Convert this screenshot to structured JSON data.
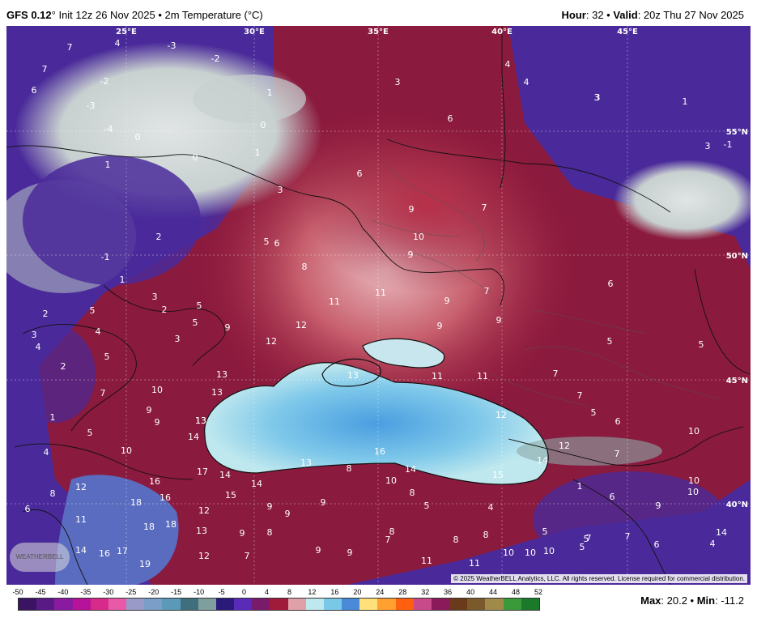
{
  "header": {
    "model": "GFS 0.12",
    "degree": "°",
    "init": " Init 12z 26 Nov 2025 • 2m Temperature (°C)",
    "hour_label": "Hour",
    "hour_value": ": 32 • ",
    "valid_label": "Valid",
    "valid_value": ": 20z Thu 27 Nov 2025"
  },
  "map": {
    "longitudes": [
      "25°E",
      "30°E",
      "35°E",
      "40°E",
      "45°E"
    ],
    "latitudes": [
      "55°N",
      "50°N",
      "45°N",
      "40°N"
    ],
    "values": [
      {
        "v": "7"
      },
      {
        "v": "4"
      },
      {
        "v": "-3"
      },
      {
        "v": "-2"
      },
      {
        "v": "7"
      },
      {
        "v": "-2"
      },
      {
        "v": "6"
      },
      {
        "v": "-3"
      },
      {
        "v": "-4"
      },
      {
        "v": "0"
      },
      {
        "v": "0"
      },
      {
        "v": "1"
      },
      {
        "v": "0"
      },
      {
        "v": "3"
      },
      {
        "v": "4"
      },
      {
        "v": "3"
      },
      {
        "v": "4"
      },
      {
        "v": "6"
      },
      {
        "v": "3"
      },
      {
        "v": "1"
      },
      {
        "v": "1"
      },
      {
        "v": "-1"
      },
      {
        "v": "6"
      },
      {
        "v": "3"
      },
      {
        "v": "1"
      },
      {
        "v": "3"
      },
      {
        "v": "9"
      },
      {
        "v": "7"
      },
      {
        "v": "2"
      },
      {
        "v": "5"
      },
      {
        "v": "6"
      },
      {
        "v": "10"
      },
      {
        "v": "9"
      },
      {
        "v": "-1"
      },
      {
        "v": "8"
      },
      {
        "v": "1"
      },
      {
        "v": "6"
      },
      {
        "v": "11"
      },
      {
        "v": "11"
      },
      {
        "v": "9"
      },
      {
        "v": "7"
      },
      {
        "v": "2"
      },
      {
        "v": "5"
      },
      {
        "v": "3"
      },
      {
        "v": "2"
      },
      {
        "v": "5"
      },
      {
        "v": "4"
      },
      {
        "v": "5"
      },
      {
        "v": "9"
      },
      {
        "v": "12"
      },
      {
        "v": "9"
      },
      {
        "v": "9"
      },
      {
        "v": "3"
      },
      {
        "v": "3"
      },
      {
        "v": "4"
      },
      {
        "v": "12"
      },
      {
        "v": "5"
      },
      {
        "v": "5"
      },
      {
        "v": "5"
      },
      {
        "v": "2"
      },
      {
        "v": "13"
      },
      {
        "v": "13"
      },
      {
        "v": "13"
      },
      {
        "v": "11"
      },
      {
        "v": "7"
      },
      {
        "v": "7"
      },
      {
        "v": "10"
      },
      {
        "v": "13"
      },
      {
        "v": "11"
      },
      {
        "v": "7"
      },
      {
        "v": "1"
      },
      {
        "v": "9"
      },
      {
        "v": "9"
      },
      {
        "v": "13"
      },
      {
        "v": "12"
      },
      {
        "v": "5"
      },
      {
        "v": "6"
      },
      {
        "v": "5"
      },
      {
        "v": "14"
      },
      {
        "v": "10"
      },
      {
        "v": "4"
      },
      {
        "v": "10"
      },
      {
        "v": "16"
      },
      {
        "v": "12"
      },
      {
        "v": "7"
      },
      {
        "v": "13"
      },
      {
        "v": "14"
      },
      {
        "v": "14"
      },
      {
        "v": "17"
      },
      {
        "v": "14"
      },
      {
        "v": "8"
      },
      {
        "v": "15"
      },
      {
        "v": "10"
      },
      {
        "v": "14"
      },
      {
        "v": "16"
      },
      {
        "v": "8"
      },
      {
        "v": "9"
      },
      {
        "v": "8"
      },
      {
        "v": "12"
      },
      {
        "v": "15"
      },
      {
        "v": "18"
      },
      {
        "v": "16"
      },
      {
        "v": "9"
      },
      {
        "v": "9"
      },
      {
        "v": "10"
      },
      {
        "v": "5"
      },
      {
        "v": "4"
      },
      {
        "v": "1"
      },
      {
        "v": "6"
      },
      {
        "v": "6"
      },
      {
        "v": "11"
      },
      {
        "v": "12"
      },
      {
        "v": "18"
      },
      {
        "v": "18"
      },
      {
        "v": "13"
      },
      {
        "v": "8"
      },
      {
        "v": "8"
      },
      {
        "v": "7"
      },
      {
        "v": "8"
      },
      {
        "v": "8"
      },
      {
        "v": "5"
      },
      {
        "v": "7"
      },
      {
        "v": "14"
      },
      {
        "v": "17"
      },
      {
        "v": "16"
      },
      {
        "v": "9"
      },
      {
        "v": "7"
      },
      {
        "v": "5"
      },
      {
        "v": "19"
      },
      {
        "v": "12"
      },
      {
        "v": "9"
      },
      {
        "v": "9"
      },
      {
        "v": "11"
      },
      {
        "v": "11"
      },
      {
        "v": "10"
      },
      {
        "v": "10"
      },
      {
        "v": "10"
      },
      {
        "v": "7"
      },
      {
        "v": "6"
      },
      {
        "v": "4"
      },
      {
        "v": "5"
      },
      {
        "v": "14"
      },
      {
        "v": "10"
      },
      {
        "v": "9"
      }
    ],
    "credit": "© 2025 WeatherBELL Analytics, LLC. All rights reserved. License required for commercial distribution.",
    "logo": "WEATHERBELL"
  },
  "scale": {
    "ticks": [
      "-50",
      "-45",
      "-40",
      "-35",
      "-30",
      "-25",
      "-20",
      "-15",
      "-10",
      "-5",
      "0",
      "4",
      "8",
      "12",
      "16",
      "20",
      "24",
      "28",
      "32",
      "36",
      "40",
      "44",
      "48",
      "52"
    ],
    "colors": [
      "#3a1463",
      "#5a1a86",
      "#8a1aa0",
      "#b6129a",
      "#d82a8a",
      "#e85aa8",
      "#9a9ac8",
      "#7a9ec8",
      "#5a9ab8",
      "#3f6f7c",
      "#7f9f9f",
      "#2a1a7a",
      "#5a2ab8",
      "#7a1a6a",
      "#a01a3a",
      "#e0a0a8",
      "#bfe8ee",
      "#7ac8e8",
      "#4a8ad8",
      "#ffe07a",
      "#ffa030",
      "#ff6010",
      "#c84a8a",
      "#8a1a5a",
      "#6a3a1a",
      "#7a5a2a",
      "#a08a4a",
      "#3a9a3a",
      "#1a7a2a"
    ]
  },
  "stats": {
    "max_label": "Max",
    "max_value": ": 20.2 • ",
    "min_label": "Min",
    "min_value": ": -11.2"
  }
}
